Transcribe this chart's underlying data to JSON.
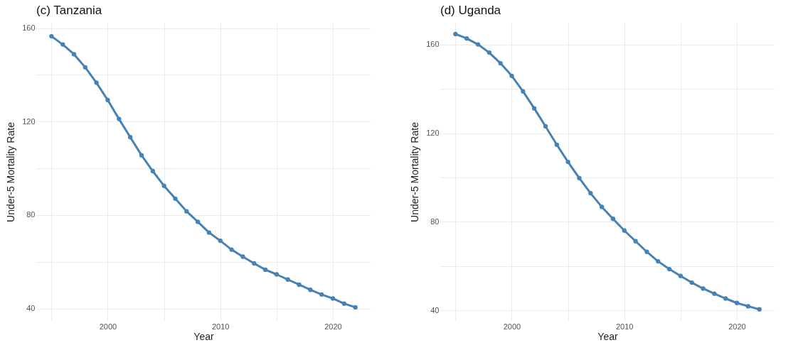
{
  "chart_data": [
    {
      "type": "line",
      "title": "(c)  Tanzania",
      "xlabel": "Year",
      "ylabel": "Under-5 Mortality Rate",
      "x": [
        1995,
        1996,
        1997,
        1998,
        1999,
        2000,
        2001,
        2002,
        2003,
        2004,
        2005,
        2006,
        2007,
        2008,
        2009,
        2010,
        2011,
        2012,
        2013,
        2014,
        2015,
        2016,
        2017,
        2018,
        2019,
        2020,
        2021,
        2022
      ],
      "series": [
        {
          "color": "#4682b4",
          "values": [
            156.5,
            153.0,
            148.8,
            143.2,
            136.6,
            129.2,
            121.1,
            113.3,
            105.6,
            98.8,
            92.5,
            87.0,
            81.6,
            77.1,
            72.5,
            69.0,
            65.2,
            62.2,
            59.3,
            56.6,
            54.6,
            52.4,
            50.2,
            48.0,
            46.0,
            44.3,
            42.1,
            40.5
          ]
        }
      ],
      "xlim": [
        1993.65,
        2023.35
      ],
      "xticks": [
        {
          "value": 1995,
          "label": null
        },
        2000,
        {
          "value": 2005,
          "label": null
        },
        2010,
        {
          "value": 2015,
          "label": null
        },
        2020
      ],
      "ylim": [
        34.7,
        162.3
      ],
      "yticks": [
        40,
        {
          "value": 60,
          "label": null
        },
        80,
        {
          "value": 100,
          "label": null
        },
        120,
        {
          "value": 140,
          "label": null
        },
        160
      ],
      "grid": true,
      "marker": "circle",
      "line_style": "solid"
    },
    {
      "type": "line",
      "title": "(d)  Uganda",
      "xlabel": "Year",
      "ylabel": "Under-5 Mortality Rate",
      "x": [
        1995,
        1996,
        1997,
        1998,
        1999,
        2000,
        2001,
        2002,
        2003,
        2004,
        2005,
        2006,
        2007,
        2008,
        2009,
        2010,
        2011,
        2012,
        2013,
        2014,
        2015,
        2016,
        2017,
        2018,
        2019,
        2020,
        2021,
        2022
      ],
      "series": [
        {
          "color": "#4682b4",
          "values": [
            164.8,
            162.8,
            160.1,
            156.4,
            151.6,
            145.9,
            138.9,
            131.2,
            123.1,
            114.8,
            107.0,
            99.7,
            92.9,
            86.7,
            81.3,
            76.0,
            71.2,
            66.4,
            62.1,
            58.6,
            55.5,
            52.5,
            49.8,
            47.5,
            45.3,
            43.3,
            41.8,
            40.4
          ]
        }
      ],
      "xlim": [
        1993.65,
        2023.35
      ],
      "xticks": [
        {
          "value": 1995,
          "label": null
        },
        2000,
        {
          "value": 2005,
          "label": null
        },
        2010,
        {
          "value": 2015,
          "label": null
        },
        2020
      ],
      "ylim": [
        35.2,
        169.9
      ],
      "yticks": [
        40,
        {
          "value": 60,
          "label": null
        },
        80,
        {
          "value": 100,
          "label": null
        },
        120,
        {
          "value": 140,
          "label": null
        },
        160
      ],
      "grid": true,
      "marker": "circle",
      "line_style": "solid"
    }
  ]
}
